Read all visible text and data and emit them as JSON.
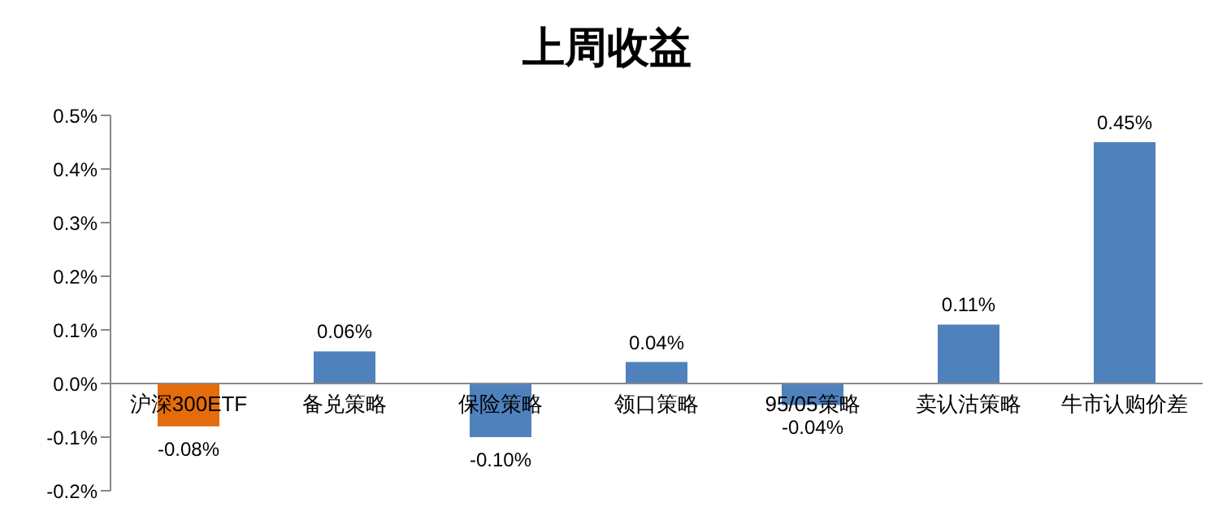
{
  "chart_data": {
    "type": "bar",
    "title": "上周收益",
    "categories": [
      "沪深300ETF",
      "备兑策略",
      "保险策略",
      "领口策略",
      "95/05策略",
      "卖认沽策略",
      "牛市认购价差"
    ],
    "values": [
      -0.08,
      0.06,
      -0.1,
      0.04,
      -0.04,
      0.11,
      0.45
    ],
    "colors": [
      "#e46c0a",
      "#4f81bd",
      "#4f81bd",
      "#4f81bd",
      "#4f81bd",
      "#4f81bd",
      "#4f81bd"
    ],
    "value_labels": [
      "-0.08%",
      "0.06%",
      "-0.10%",
      "0.04%",
      "-0.04%",
      "0.11%",
      "0.45%"
    ],
    "ylim": [
      -0.2,
      0.5
    ],
    "yticks": [
      {
        "value": -0.2,
        "label": "-0.2%"
      },
      {
        "value": -0.1,
        "label": "-0.1%"
      },
      {
        "value": 0,
        "label": "0.0%"
      },
      {
        "value": 0.1,
        "label": "0.1%"
      },
      {
        "value": 0.2,
        "label": "0.2%"
      },
      {
        "value": 0.3,
        "label": "0.3%"
      },
      {
        "value": 0.4,
        "label": "0.4%"
      },
      {
        "value": 0.5,
        "label": "0.5%"
      }
    ],
    "grid": false,
    "legend": false
  }
}
